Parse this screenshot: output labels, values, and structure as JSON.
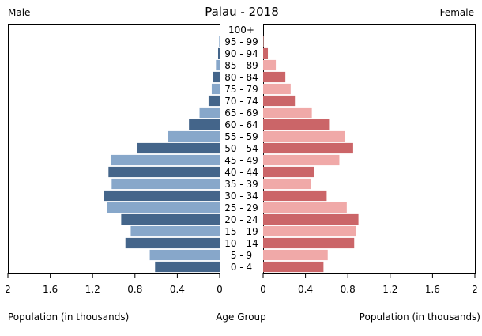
{
  "chart_data": {
    "type": "bar",
    "title": "Palau - 2018",
    "left_label": "Male",
    "right_label": "Female",
    "xlabel_left": "Population (in thousands)",
    "xlabel_center": "Age Group",
    "xlabel_right": "Population (in thousands)",
    "xlim": [
      0,
      2
    ],
    "ticks": [
      "2",
      "1.6",
      "1.2",
      "0.8",
      "0.4",
      "0"
    ],
    "ticks_right": [
      "0",
      "0.4",
      "0.8",
      "1.2",
      "1.6",
      "2"
    ],
    "tick_values": [
      0,
      0.4,
      0.8,
      1.2,
      1.6,
      2
    ],
    "categories": [
      "100+",
      "95 - 99",
      "90 - 94",
      "85 - 89",
      "80 - 84",
      "75 - 79",
      "70 - 74",
      "65 - 69",
      "60 - 64",
      "55 - 59",
      "50 - 54",
      "45 - 49",
      "40 - 44",
      "35 - 39",
      "30 - 34",
      "25 - 29",
      "20 - 24",
      "15 - 19",
      "10 - 14",
      "5 - 9",
      "0 - 4"
    ],
    "series": [
      {
        "name": "Male",
        "values": [
          0,
          0.005,
          0.015,
          0.035,
          0.065,
          0.075,
          0.105,
          0.19,
          0.29,
          0.49,
          0.78,
          1.03,
          1.05,
          1.02,
          1.09,
          1.06,
          0.93,
          0.84,
          0.89,
          0.66,
          0.61
        ]
      },
      {
        "name": "Female",
        "values": [
          0,
          0.005,
          0.045,
          0.12,
          0.21,
          0.26,
          0.3,
          0.46,
          0.63,
          0.77,
          0.85,
          0.72,
          0.48,
          0.45,
          0.6,
          0.79,
          0.9,
          0.88,
          0.86,
          0.61,
          0.57
        ]
      }
    ],
    "colors": {
      "male_dark": "#44658a",
      "male_light": "#87a7ca",
      "female_dark": "#cb6568",
      "female_light": "#f0a9a8"
    }
  }
}
